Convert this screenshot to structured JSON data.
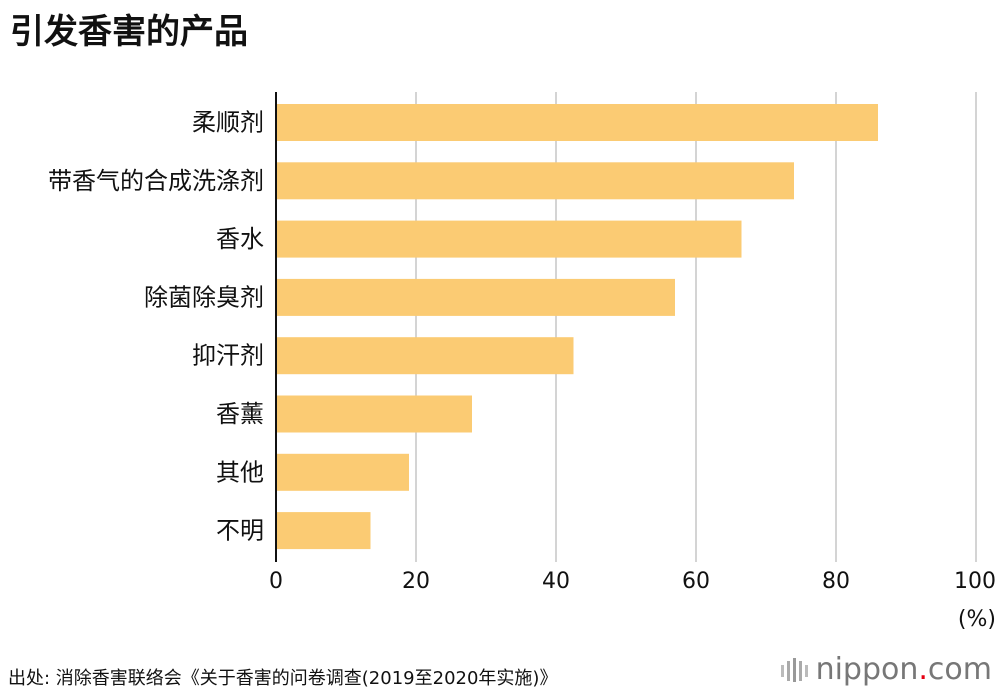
{
  "chart_data": {
    "type": "bar",
    "orientation": "horizontal",
    "title": "引发香害的产品",
    "categories": [
      "柔顺剂",
      "带香气的合成洗涤剂",
      "香水",
      "除菌除臭剂",
      "抑汗剂",
      "香薰",
      "其他",
      "不明"
    ],
    "values": [
      86,
      74,
      66.5,
      57,
      42.5,
      28,
      19,
      13.5
    ],
    "xlim": [
      0,
      100
    ],
    "xticks": [
      0,
      20,
      40,
      60,
      80,
      100
    ],
    "xlabel": "(%)",
    "ylabel": "",
    "grid": true,
    "bar_color": "#FBCB73",
    "grid_color": "#D4D4D4",
    "axis_color": "#111111"
  },
  "footer": {
    "source": "出处: 消除香害联络会《关于香害的问卷调查(2019至2020年实施)》",
    "logo_text": "nippon",
    "logo_dot": ".",
    "logo_suffix": "com"
  },
  "colors": {
    "logo": "#777777",
    "logo_dot": "#E60012"
  }
}
